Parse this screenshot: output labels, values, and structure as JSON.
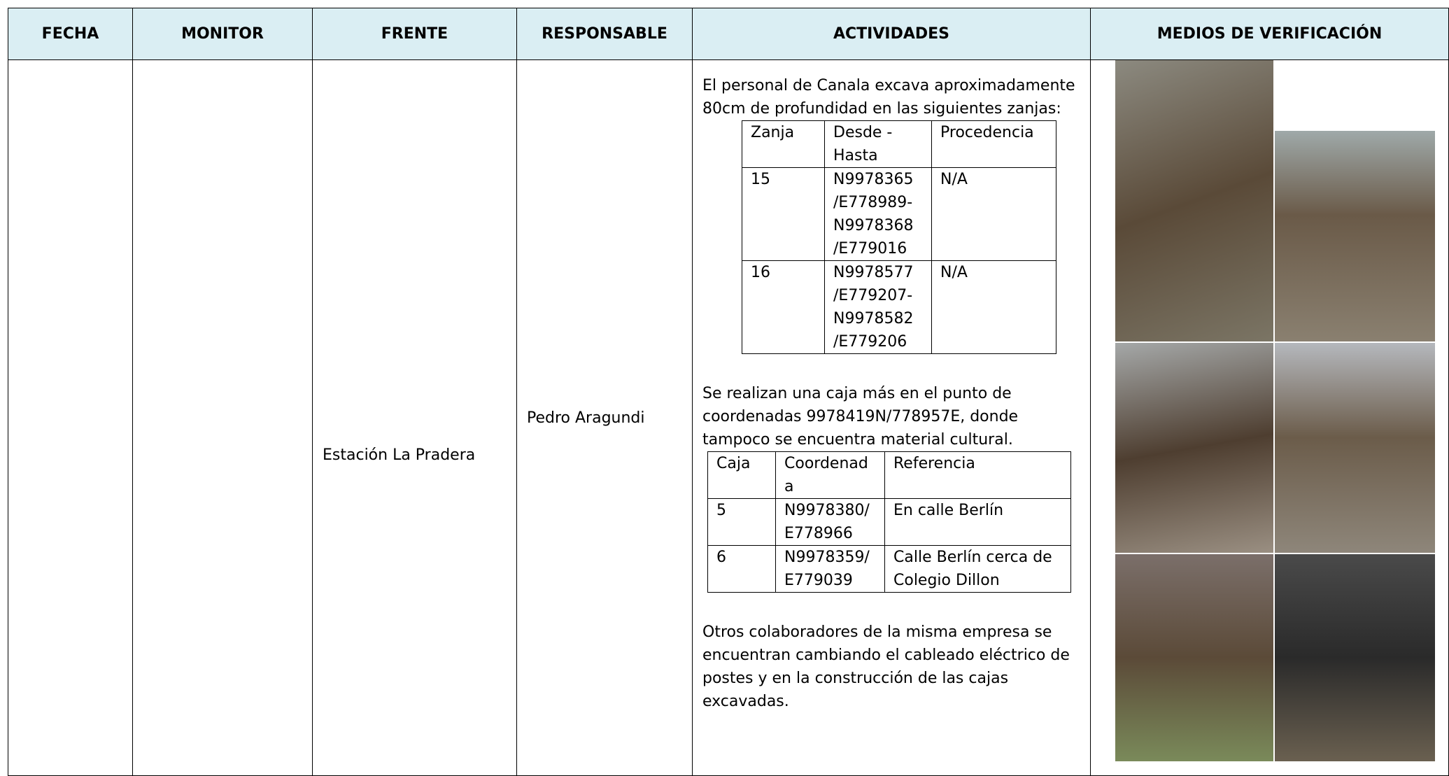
{
  "table": {
    "headers": [
      "FECHA",
      "MONITOR",
      "FRENTE",
      "RESPONSABLE",
      "ACTIVIDADES",
      "MEDIOS DE VERIFICACIÓN"
    ],
    "frente": "Estación La Pradera",
    "responsable": "Pedro Aragundi",
    "activities": {
      "intro": "El personal de Canala excava aproximadamente 80cm de profundidad en las siguientes zanjas:",
      "zanjas": {
        "headers": [
          "Zanja",
          "Desde - Hasta",
          "Procedencia"
        ],
        "rows": [
          [
            "15",
            "N9978365 /E778989- N9978368 /E779016",
            "N/A"
          ],
          [
            "16",
            "N9978577 /E779207- N9978582 /E779206",
            "N/A"
          ]
        ]
      },
      "caja_intro": "Se realizan una caja más en el punto de coordenadas 9978419N/778957E, donde tampoco se encuentra material cultural.",
      "cajas": {
        "headers": [
          "Caja",
          "Coordenada",
          "Referencia"
        ],
        "rows": [
          [
            "5",
            "N9978380/ E778966",
            "En calle Berlín"
          ],
          [
            "6",
            "N9978359/ E779039",
            "Calle Berlín cerca de Colegio Dillon"
          ]
        ]
      },
      "closing": "Otros colaboradores de la misma empresa se encuentran cambiando el cableado eléctrico de postes y en la construcción de las cajas excavadas."
    }
  }
}
